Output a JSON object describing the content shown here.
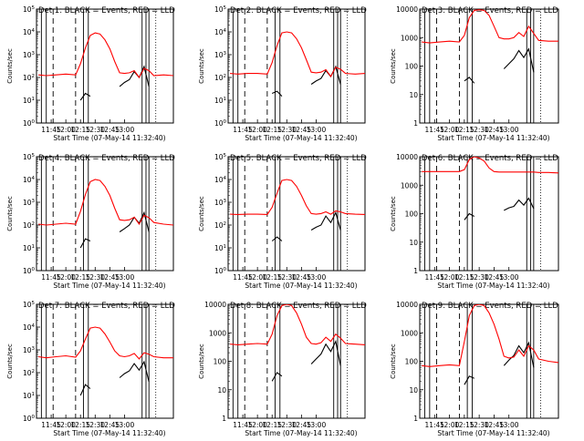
{
  "common": {
    "ylabel": "Counts/sec",
    "xlabel": "Start Time (07-May-14 11:32:40)",
    "x_ticks": [
      "11:45",
      "12:00",
      "12:15",
      "12:30",
      "12:45",
      "13:00"
    ],
    "colors": {
      "events": "#000000",
      "lld": "#ff0000"
    }
  },
  "chart_data": [
    {
      "type": "line",
      "title": "Det 1: BLACK = Events, RED = LLD",
      "yscale": "log",
      "ylim": [
        1,
        100000
      ],
      "yticklabels": [
        "10^0",
        "10^1",
        "10^2",
        "10^3",
        "10^4",
        "10^5"
      ],
      "series": [
        {
          "name": "Events",
          "color": "#000000",
          "x_min": [
            735,
            740,
            745,
            750,
            755,
            760,
            765,
            770,
            775,
            780,
            785,
            790,
            795,
            800,
            805
          ],
          "values": [
            10,
            20,
            15,
            null,
            null,
            null,
            null,
            null,
            40,
            60,
            80,
            180,
            100,
            300,
            40
          ]
        },
        {
          "name": "LLD",
          "color": "#ff0000",
          "x_min": [
            692,
            700,
            710,
            720,
            730,
            735,
            740,
            745,
            750,
            755,
            760,
            765,
            770,
            775,
            780,
            785,
            790,
            795,
            800,
            805,
            810,
            820,
            830
          ],
          "values": [
            130,
            120,
            130,
            140,
            130,
            400,
            2000,
            7000,
            9000,
            8000,
            4500,
            1800,
            500,
            160,
            150,
            160,
            200,
            100,
            250,
            200,
            120,
            130,
            120
          ]
        }
      ]
    },
    {
      "type": "line",
      "title": "Det 2: BLACK = Events, RED = LLD",
      "yscale": "log",
      "ylim": [
        1,
        100000
      ],
      "yticklabels": [
        "10^0",
        "10^1",
        "10^2",
        "10^3",
        "10^4",
        "10^5"
      ],
      "series": [
        {
          "name": "Events",
          "color": "#000000",
          "x_min": [
            735,
            740,
            745,
            750,
            755,
            760,
            765,
            770,
            775,
            780,
            785,
            790,
            795,
            800,
            805
          ],
          "values": [
            20,
            25,
            15,
            null,
            null,
            null,
            null,
            null,
            50,
            70,
            90,
            200,
            110,
            300,
            50
          ]
        },
        {
          "name": "LLD",
          "color": "#ff0000",
          "x_min": [
            692,
            700,
            710,
            720,
            730,
            735,
            740,
            745,
            750,
            755,
            760,
            765,
            770,
            775,
            780,
            785,
            790,
            795,
            800,
            805,
            810,
            820,
            830
          ],
          "values": [
            150,
            140,
            150,
            150,
            140,
            450,
            2500,
            9000,
            10000,
            9000,
            5000,
            2000,
            600,
            170,
            160,
            170,
            220,
            110,
            280,
            230,
            150,
            140,
            150
          ]
        }
      ]
    },
    {
      "type": "line",
      "title": "Det 3: BLACK = Events, RED = LLD",
      "yscale": "log",
      "ylim": [
        1,
        10000
      ],
      "yticklabels": [
        "1",
        "10",
        "100",
        "1000",
        "10000"
      ],
      "series": [
        {
          "name": "Events",
          "color": "#000000",
          "x_min": [
            735,
            740,
            745,
            750,
            755,
            760,
            765,
            770,
            775,
            780,
            785,
            790,
            795,
            800,
            805
          ],
          "values": [
            30,
            40,
            25,
            null,
            null,
            null,
            null,
            null,
            80,
            120,
            180,
            350,
            200,
            400,
            60
          ]
        },
        {
          "name": "LLD",
          "color": "#ff0000",
          "x_min": [
            692,
            700,
            710,
            720,
            730,
            735,
            740,
            745,
            750,
            755,
            760,
            765,
            770,
            775,
            780,
            785,
            790,
            795,
            800,
            805,
            810,
            820,
            830
          ],
          "values": [
            700,
            650,
            700,
            750,
            700,
            1200,
            5000,
            9000,
            9500,
            9000,
            6000,
            2500,
            1000,
            900,
            900,
            1000,
            1500,
            1100,
            2500,
            1400,
            800,
            750,
            750
          ]
        }
      ]
    },
    {
      "type": "line",
      "title": "Det 4: BLACK = Events, RED = LLD",
      "yscale": "log",
      "ylim": [
        1,
        100000
      ],
      "yticklabels": [
        "10^0",
        "10^1",
        "10^2",
        "10^3",
        "10^4",
        "10^5"
      ],
      "series": [
        {
          "name": "Events",
          "color": "#000000",
          "x_min": [
            735,
            740,
            745,
            750,
            755,
            760,
            765,
            770,
            775,
            780,
            785,
            790,
            795,
            800,
            805
          ],
          "values": [
            10,
            25,
            20,
            null,
            null,
            null,
            null,
            null,
            50,
            70,
            100,
            220,
            120,
            350,
            50
          ]
        },
        {
          "name": "LLD",
          "color": "#ff0000",
          "x_min": [
            692,
            700,
            710,
            720,
            730,
            735,
            740,
            745,
            750,
            755,
            760,
            765,
            770,
            775,
            780,
            785,
            790,
            795,
            800,
            805,
            810,
            820,
            830
          ],
          "values": [
            110,
            100,
            110,
            120,
            110,
            400,
            2200,
            8000,
            10000,
            9000,
            5000,
            2000,
            550,
            170,
            160,
            170,
            220,
            110,
            270,
            210,
            130,
            110,
            100
          ]
        }
      ]
    },
    {
      "type": "line",
      "title": "Det 5: BLACK = Events, RED = LLD",
      "yscale": "log",
      "ylim": [
        1,
        100000
      ],
      "yticklabels": [
        "10^0",
        "10^1",
        "10^2",
        "10^3",
        "10^4",
        "10^5"
      ],
      "series": [
        {
          "name": "Events",
          "color": "#000000",
          "x_min": [
            735,
            740,
            745,
            750,
            755,
            760,
            765,
            770,
            775,
            780,
            785,
            790,
            795,
            800,
            805
          ],
          "values": [
            20,
            30,
            20,
            null,
            null,
            null,
            null,
            null,
            60,
            80,
            100,
            250,
            130,
            350,
            60
          ]
        },
        {
          "name": "LLD",
          "color": "#ff0000",
          "x_min": [
            692,
            700,
            710,
            720,
            730,
            735,
            740,
            745,
            750,
            755,
            760,
            765,
            770,
            775,
            780,
            785,
            790,
            795,
            800,
            805,
            810,
            820,
            830
          ],
          "values": [
            300,
            290,
            300,
            300,
            290,
            600,
            2500,
            9000,
            10000,
            9000,
            5000,
            2000,
            700,
            320,
            300,
            320,
            380,
            300,
            420,
            380,
            320,
            300,
            290
          ]
        }
      ]
    },
    {
      "type": "line",
      "title": "Det 6: BLACK = Events, RED = LLD",
      "yscale": "log",
      "ylim": [
        1,
        10000
      ],
      "yticklabels": [
        "1",
        "10",
        "100",
        "1000",
        "10000"
      ],
      "series": [
        {
          "name": "Events",
          "color": "#000000",
          "x_min": [
            735,
            740,
            745,
            750,
            755,
            760,
            765,
            770,
            775,
            780,
            785,
            790,
            795,
            800,
            805
          ],
          "values": [
            60,
            100,
            80,
            null,
            null,
            null,
            null,
            null,
            130,
            160,
            180,
            300,
            200,
            350,
            150
          ]
        },
        {
          "name": "LLD",
          "color": "#ff0000",
          "x_min": [
            692,
            700,
            710,
            720,
            730,
            735,
            740,
            745,
            750,
            755,
            760,
            765,
            770,
            775,
            780,
            785,
            790,
            795,
            800,
            805,
            810,
            820,
            830
          ],
          "values": [
            3000,
            3000,
            3000,
            3000,
            3000,
            3500,
            8000,
            10000,
            9000,
            7000,
            4000,
            3000,
            2900,
            2900,
            2900,
            2900,
            2900,
            2900,
            2900,
            2900,
            2800,
            2800,
            2700
          ]
        }
      ]
    },
    {
      "type": "line",
      "title": "Det 7: BLACK = Events, RED = LLD",
      "yscale": "log",
      "ylim": [
        1,
        100000
      ],
      "yticklabels": [
        "10^0",
        "10^1",
        "10^2",
        "10^3",
        "10^4",
        "10^5"
      ],
      "series": [
        {
          "name": "Events",
          "color": "#000000",
          "x_min": [
            735,
            740,
            745,
            750,
            755,
            760,
            765,
            770,
            775,
            780,
            785,
            790,
            795,
            800,
            805
          ],
          "values": [
            10,
            30,
            20,
            null,
            null,
            null,
            null,
            null,
            60,
            90,
            120,
            250,
            130,
            300,
            40
          ]
        },
        {
          "name": "LLD",
          "color": "#ff0000",
          "x_min": [
            692,
            700,
            710,
            720,
            730,
            735,
            740,
            745,
            750,
            755,
            760,
            765,
            770,
            775,
            780,
            785,
            790,
            795,
            800,
            805,
            810,
            820,
            830
          ],
          "values": [
            500,
            450,
            500,
            550,
            480,
            900,
            3000,
            9000,
            10000,
            9000,
            5000,
            2200,
            900,
            550,
            500,
            550,
            700,
            400,
            750,
            650,
            500,
            450,
            450
          ]
        }
      ]
    },
    {
      "type": "line",
      "title": "Det 8: BLACK = Events, RED = LLD",
      "yscale": "log",
      "ylim": [
        1,
        10000
      ],
      "yticklabels": [
        "1",
        "10",
        "100",
        "1000",
        "10000"
      ],
      "series": [
        {
          "name": "Events",
          "color": "#000000",
          "x_min": [
            735,
            740,
            745,
            750,
            755,
            760,
            765,
            770,
            775,
            780,
            785,
            790,
            795,
            800,
            805
          ],
          "values": [
            20,
            40,
            30,
            null,
            null,
            null,
            null,
            null,
            80,
            120,
            180,
            400,
            220,
            500,
            70
          ]
        },
        {
          "name": "LLD",
          "color": "#ff0000",
          "x_min": [
            692,
            700,
            710,
            720,
            730,
            735,
            740,
            745,
            750,
            755,
            760,
            765,
            770,
            775,
            780,
            785,
            790,
            795,
            800,
            805,
            810,
            820,
            830
          ],
          "values": [
            400,
            380,
            400,
            420,
            400,
            900,
            4000,
            9000,
            10000,
            9000,
            5000,
            2000,
            700,
            420,
            400,
            450,
            700,
            500,
            900,
            650,
            420,
            400,
            380
          ]
        }
      ]
    },
    {
      "type": "line",
      "title": "Det 9: BLACK = Events, RED = LLD",
      "yscale": "log",
      "ylim": [
        1,
        10000
      ],
      "yticklabels": [
        "1",
        "10",
        "100",
        "1000",
        "10000"
      ],
      "series": [
        {
          "name": "Events",
          "color": "#000000",
          "x_min": [
            735,
            740,
            745,
            750,
            755,
            760,
            765,
            770,
            775,
            780,
            785,
            790,
            795,
            800,
            805
          ],
          "values": [
            15,
            30,
            25,
            null,
            null,
            null,
            null,
            null,
            70,
            110,
            160,
            350,
            200,
            450,
            60
          ]
        },
        {
          "name": "LLD",
          "color": "#ff0000",
          "x_min": [
            692,
            700,
            710,
            720,
            730,
            735,
            740,
            745,
            750,
            755,
            760,
            765,
            770,
            775,
            780,
            785,
            790,
            795,
            800,
            805,
            810,
            820,
            830
          ],
          "values": [
            70,
            65,
            70,
            75,
            70,
            500,
            4000,
            9000,
            10000,
            9000,
            5000,
            2000,
            600,
            150,
            130,
            140,
            250,
            150,
            350,
            250,
            120,
            100,
            90
          ]
        }
      ]
    }
  ]
}
